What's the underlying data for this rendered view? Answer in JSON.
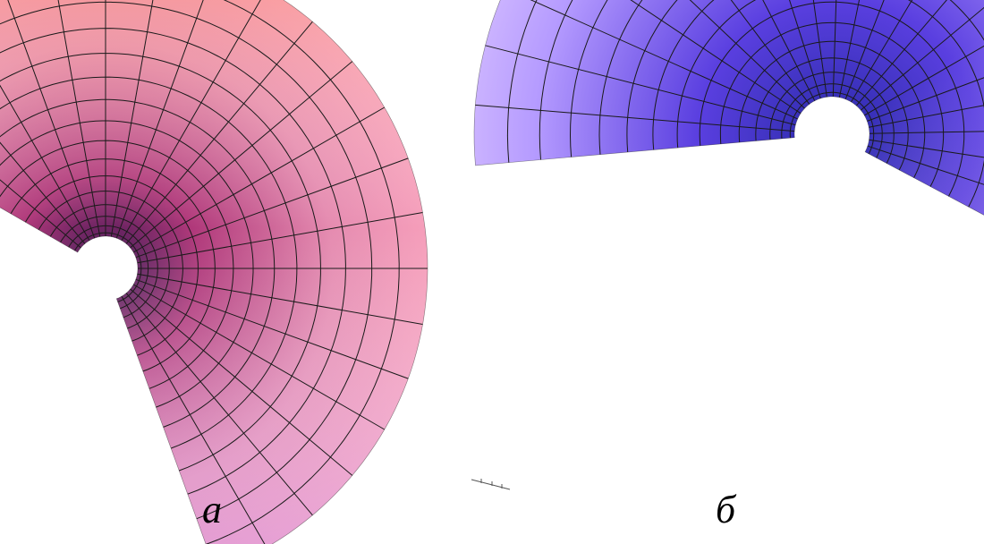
{
  "figure": {
    "panel_a": {
      "caption": "а",
      "palette": {
        "light": "#ffa9c0",
        "mid": "#e58bb0",
        "dark": "#b0387a",
        "throat": "#3a1450",
        "corner": "#ff8a6a",
        "bottom": "#d79ae8"
      },
      "grid_color": "#1a1a1a"
    },
    "panel_b": {
      "caption": "б",
      "palette": {
        "light": "#eed9ff",
        "mid": "#b59bff",
        "dark": "#5a3fe0",
        "throat": "#2a2aa8",
        "edge": "#6a3fd0",
        "bottom": "#b48af5"
      },
      "grid_color": "#1a1a1a"
    }
  }
}
